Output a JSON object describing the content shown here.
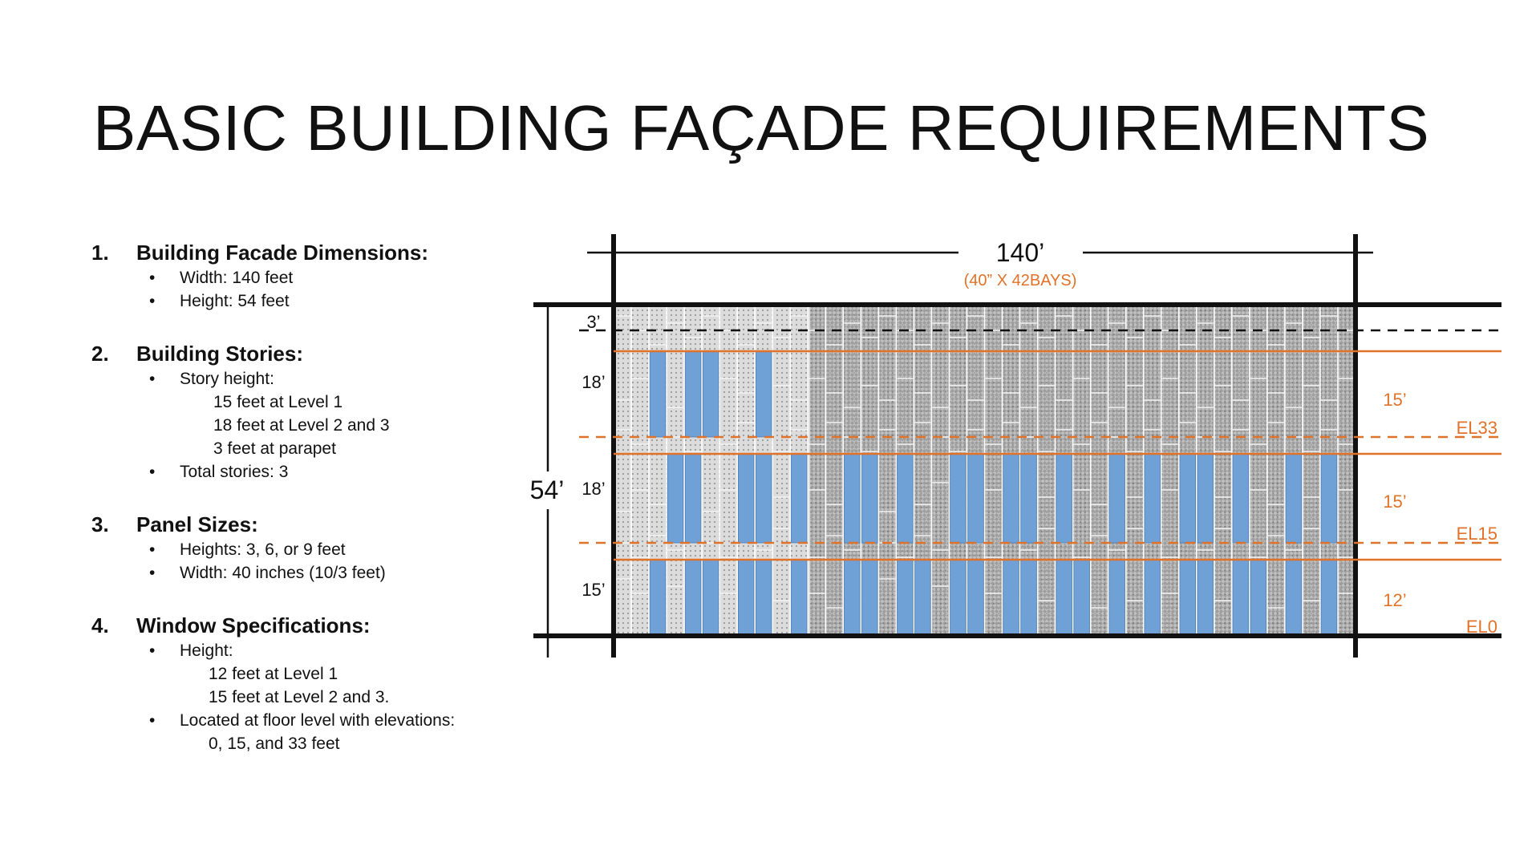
{
  "slide": {
    "title": "BASIC BUILDING FAÇADE REQUIREMENTS"
  },
  "requirements": {
    "s1": {
      "num": "1.",
      "heading": "Building Facade Dimensions:",
      "b1": "Width: 140 feet",
      "b2": "Height: 54 feet"
    },
    "s2": {
      "num": "2.",
      "heading": "Building Stories:",
      "b1": "Story height:",
      "sub1": "15 feet at Level 1",
      "sub2": "18 feet at Level 2 and 3",
      "sub3": "3 feet at parapet",
      "b2": "Total stories: 3"
    },
    "s3": {
      "num": "3.",
      "heading": "Panel Sizes:",
      "b1": "Heights: 3, 6, or 9 feet",
      "b2": "Width: 40 inches (10/3 feet)"
    },
    "s4": {
      "num": "4.",
      "heading": "Window Specifications:",
      "b1": "Height:",
      "sub1": "12 feet at Level 1",
      "sub2": "15 feet at Level 2 and 3.",
      "b2": "Located at floor level with elevations:",
      "sub3": "0, 15, and 33 feet"
    }
  },
  "diagram": {
    "width_label": "140’",
    "bays_label": "(40” X 42BAYS)",
    "height_label": "54’",
    "story_labels": {
      "parapet": "3’",
      "level3": "18’",
      "level2": "18’",
      "level1": "15’"
    },
    "window_labels": {
      "level3": "15’",
      "level2": "15’",
      "level1": "12’"
    },
    "elevation_labels": {
      "el33": "EL33",
      "el15": "EL15",
      "el0": "EL0"
    },
    "bay_count": 42,
    "window_bays": {
      "level3": [
        3,
        5,
        6,
        9
      ],
      "level2": [
        4,
        5,
        8,
        9,
        11,
        14,
        15,
        17,
        20,
        21,
        23,
        24,
        26,
        29,
        31,
        33,
        34,
        36,
        39,
        41
      ],
      "level1": [
        3,
        5,
        6,
        8,
        9,
        11,
        14,
        15,
        17,
        18,
        20,
        21,
        23,
        24,
        26,
        27,
        29,
        31,
        33,
        34,
        36,
        37,
        39,
        41
      ]
    },
    "colors": {
      "window": "#6FA0D6",
      "accent": "#E0722A",
      "line": "#111111"
    }
  }
}
